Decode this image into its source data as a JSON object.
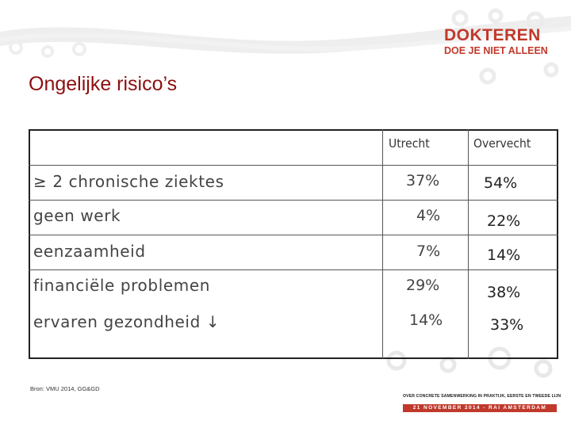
{
  "brand": {
    "line1": "DOKTEREN",
    "line2": "DOE JE NIET ALLEEN",
    "accent": "#c0392b"
  },
  "title": "Ongelijke risico’s",
  "table": {
    "columns": [
      "Utrecht",
      "Overvecht"
    ],
    "rows": [
      {
        "label": "≥ 2 chronische ziektes",
        "utrecht": "37%",
        "overvecht": "54%"
      },
      {
        "label": "geen werk",
        "utrecht": "4%",
        "overvecht": "22%"
      },
      {
        "label": "eenzaamheid",
        "utrecht": "7%",
        "overvecht": "14%"
      },
      {
        "label": "financiële problemen",
        "utrecht": "29%",
        "overvecht": "38%"
      },
      {
        "label": "ervaren gezondheid ↓",
        "utrecht": "14%",
        "overvecht": "33%"
      }
    ]
  },
  "source": "Bron: VMU 2014, GG&GD",
  "footer": {
    "tagline": "OVER CONCRETE SAMENWERKING IN PRAKTIJK, EERSTE EN TWEEDE LIJN",
    "event": "21 NOVEMBER 2014 - RAI AMSTERDAM"
  },
  "colors": {
    "title": "#8b1010",
    "text": "#444444",
    "border": "#222222"
  },
  "icons": [
    "gear-icon",
    "swirl-decoration"
  ]
}
